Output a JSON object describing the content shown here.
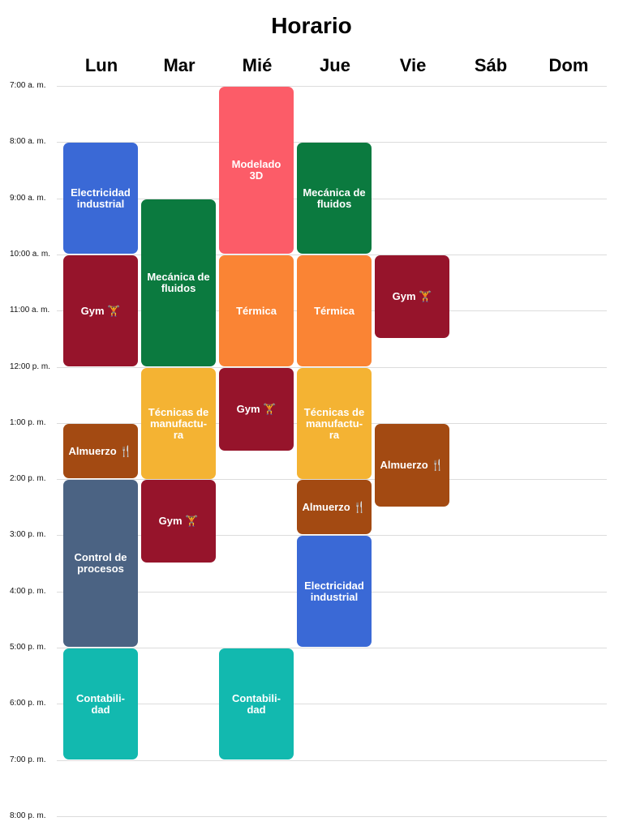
{
  "title": "Horario",
  "days": [
    "Lun",
    "Mar",
    "Mié",
    "Jue",
    "Vie",
    "Sáb",
    "Dom"
  ],
  "times": [
    "7:00 a. m.",
    "8:00 a. m.",
    "9:00 a. m.",
    "10:00 a. m.",
    "11:00 a. m.",
    "12:00 p. m.",
    "1:00 p. m.",
    "2:00 p. m.",
    "3:00 p. m.",
    "4:00 p. m.",
    "5:00 p. m.",
    "6:00 p. m.",
    "7:00 p. m.",
    "8:00 p. m."
  ],
  "events": [
    {
      "label": "Electricidad\nindustrial",
      "day": 0,
      "start": 8,
      "end": 10,
      "color": "#3A69D6"
    },
    {
      "label": "Gym 🏋",
      "day": 0,
      "start": 10,
      "end": 12,
      "color": "#96142B"
    },
    {
      "label": "Almuerzo 🍴",
      "day": 0,
      "start": 13,
      "end": 14,
      "color": "#A34A12"
    },
    {
      "label": "Control de\nprocesos",
      "day": 0,
      "start": 14,
      "end": 17,
      "color": "#4B6383"
    },
    {
      "label": "Contabili-\ndad",
      "day": 0,
      "start": 17,
      "end": 19,
      "color": "#12B9AF"
    },
    {
      "label": "Mecánica de\nfluidos",
      "day": 1,
      "start": 9,
      "end": 12,
      "color": "#0B7A3F"
    },
    {
      "label": "Técnicas de\nmanufactu-\nra",
      "day": 1,
      "start": 12,
      "end": 14,
      "color": "#F4B333"
    },
    {
      "label": "Gym 🏋",
      "day": 1,
      "start": 14,
      "end": 15.5,
      "color": "#96142B"
    },
    {
      "label": "Modelado\n3D",
      "day": 2,
      "start": 7,
      "end": 10,
      "color": "#FC5C68"
    },
    {
      "label": "Térmica",
      "day": 2,
      "start": 10,
      "end": 12,
      "color": "#FA8434"
    },
    {
      "label": "Gym 🏋",
      "day": 2,
      "start": 12,
      "end": 13.5,
      "color": "#96142B"
    },
    {
      "label": "Contabili-\ndad",
      "day": 2,
      "start": 17,
      "end": 19,
      "color": "#12B9AF"
    },
    {
      "label": "Mecánica de\nfluidos",
      "day": 3,
      "start": 8,
      "end": 10,
      "color": "#0B7A3F"
    },
    {
      "label": "Térmica",
      "day": 3,
      "start": 10,
      "end": 12,
      "color": "#FA8434"
    },
    {
      "label": "Técnicas de\nmanufactu-\nra",
      "day": 3,
      "start": 12,
      "end": 14,
      "color": "#F4B333"
    },
    {
      "label": "Almuerzo 🍴",
      "day": 3,
      "start": 14,
      "end": 15,
      "color": "#A34A12"
    },
    {
      "label": "Electricidad\nindustrial",
      "day": 3,
      "start": 15,
      "end": 17,
      "color": "#3A69D6"
    },
    {
      "label": "Gym 🏋",
      "day": 4,
      "start": 10,
      "end": 11.5,
      "color": "#96142B"
    },
    {
      "label": "Almuerzo 🍴",
      "day": 4,
      "start": 13,
      "end": 14.5,
      "color": "#A34A12"
    }
  ]
}
